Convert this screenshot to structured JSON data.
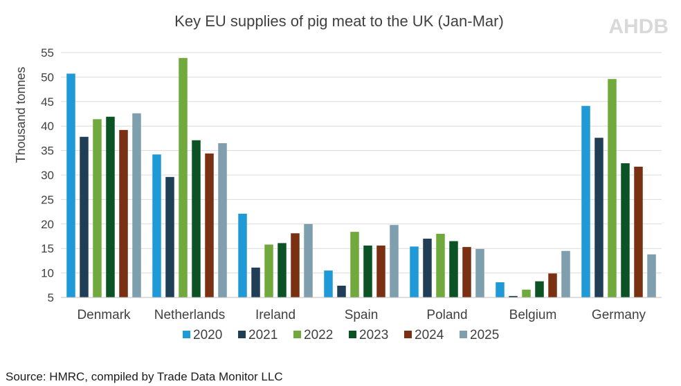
{
  "logo": {
    "text": "AHDB"
  },
  "source": "Source: HMRC, compiled by Trade Data Monitor LLC",
  "chart_data": {
    "type": "bar",
    "title": "Key EU supplies of pig meat to the UK (Jan-Mar)",
    "ylabel": "Thousand tonnes",
    "xlabel": "",
    "ylim": [
      5,
      55
    ],
    "yticks": [
      5,
      10,
      15,
      20,
      25,
      30,
      35,
      40,
      45,
      50,
      55
    ],
    "grid": true,
    "legend_position": "bottom",
    "categories": [
      "Denmark",
      "Netherlands",
      "Ireland",
      "Spain",
      "Poland",
      "Belgium",
      "Germany"
    ],
    "series": [
      {
        "name": "2020",
        "color": "#1f9ad6",
        "values": [
          50.7,
          34.2,
          22.1,
          10.5,
          15.4,
          8.1,
          44.1
        ]
      },
      {
        "name": "2021",
        "color": "#203f56",
        "values": [
          37.8,
          29.6,
          11.1,
          7.4,
          17.0,
          5.3,
          37.6
        ]
      },
      {
        "name": "2022",
        "color": "#72a93c",
        "values": [
          41.4,
          53.9,
          15.8,
          18.4,
          18.0,
          6.6,
          49.6
        ]
      },
      {
        "name": "2023",
        "color": "#0b5224",
        "values": [
          41.9,
          37.1,
          16.1,
          15.6,
          16.5,
          8.3,
          32.4
        ]
      },
      {
        "name": "2024",
        "color": "#7a3012",
        "values": [
          39.2,
          34.4,
          18.1,
          15.6,
          15.3,
          9.9,
          31.7
        ]
      },
      {
        "name": "2025",
        "color": "#7f9eae",
        "values": [
          42.6,
          36.5,
          20.0,
          19.8,
          14.9,
          14.5,
          13.8
        ]
      }
    ]
  }
}
